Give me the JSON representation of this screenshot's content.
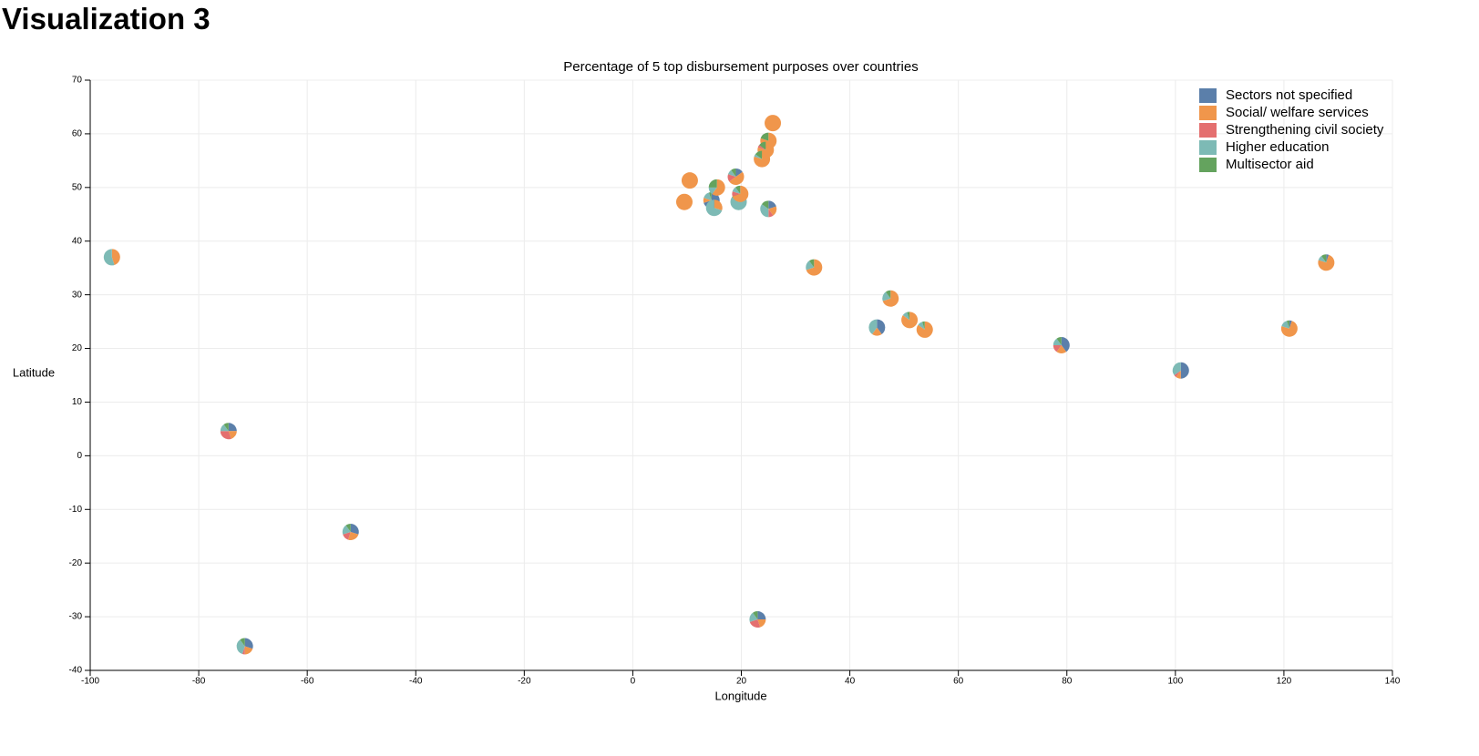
{
  "page_title": "Visualization 3",
  "chart_data": {
    "type": "scatter-pie",
    "title": "Percentage of 5 top disbursement purposes over countries",
    "xlabel": "Longitude",
    "ylabel": "Latitude",
    "xlim": [
      -100,
      140
    ],
    "ylim": [
      -40,
      70
    ],
    "xticks": [
      -100,
      -80,
      -60,
      -40,
      -20,
      0,
      20,
      40,
      60,
      80,
      100,
      120,
      140
    ],
    "yticks": [
      -40,
      -30,
      -20,
      -10,
      0,
      10,
      20,
      30,
      40,
      50,
      60,
      70
    ],
    "grid": true,
    "legend": "top-right",
    "series": [
      {
        "name": "Sectors not specified",
        "color": "#5b7faa"
      },
      {
        "name": "Social/ welfare services",
        "color": "#f0964b"
      },
      {
        "name": "Strengthening civil society",
        "color": "#e46f6f"
      },
      {
        "name": "Higher education",
        "color": "#7dbab5"
      },
      {
        "name": "Multisector aid",
        "color": "#64a35e"
      }
    ],
    "points": [
      {
        "x": -96,
        "y": 37,
        "values": [
          0,
          45,
          0,
          55,
          0
        ]
      },
      {
        "x": -74.5,
        "y": 4.6,
        "values": [
          25,
          20,
          30,
          15,
          10
        ]
      },
      {
        "x": -52,
        "y": -14.2,
        "values": [
          30,
          25,
          15,
          20,
          10
        ]
      },
      {
        "x": -71.5,
        "y": -35.5,
        "values": [
          30,
          20,
          5,
          35,
          10
        ]
      },
      {
        "x": 23,
        "y": -30.5,
        "values": [
          25,
          20,
          25,
          20,
          10
        ]
      },
      {
        "x": 10.5,
        "y": 51.3,
        "values": [
          0,
          100,
          0,
          0,
          0
        ]
      },
      {
        "x": 9.5,
        "y": 47.3,
        "values": [
          0,
          100,
          0,
          0,
          0
        ]
      },
      {
        "x": 14.5,
        "y": 47.6,
        "values": [
          70,
          10,
          0,
          15,
          5
        ]
      },
      {
        "x": 15,
        "y": 46.2,
        "values": [
          0,
          30,
          0,
          70,
          0
        ]
      },
      {
        "x": 15.5,
        "y": 50,
        "values": [
          0,
          60,
          0,
          15,
          25
        ]
      },
      {
        "x": 19,
        "y": 52,
        "values": [
          15,
          50,
          15,
          10,
          10
        ]
      },
      {
        "x": 19.5,
        "y": 47.3,
        "values": [
          0,
          15,
          0,
          70,
          15
        ]
      },
      {
        "x": 19.8,
        "y": 48.8,
        "values": [
          0,
          70,
          10,
          10,
          10
        ]
      },
      {
        "x": 25.8,
        "y": 62,
        "values": [
          0,
          100,
          0,
          0,
          0
        ]
      },
      {
        "x": 25,
        "y": 58.7,
        "values": [
          0,
          80,
          0,
          0,
          20
        ]
      },
      {
        "x": 24.5,
        "y": 57,
        "values": [
          0,
          80,
          5,
          0,
          15
        ]
      },
      {
        "x": 23.8,
        "y": 55.3,
        "values": [
          0,
          80,
          0,
          5,
          15
        ]
      },
      {
        "x": 25,
        "y": 46,
        "values": [
          20,
          20,
          10,
          35,
          15
        ]
      },
      {
        "x": 33.4,
        "y": 35.1,
        "values": [
          0,
          70,
          0,
          20,
          10
        ]
      },
      {
        "x": 47.5,
        "y": 29.3,
        "values": [
          0,
          70,
          0,
          20,
          10
        ]
      },
      {
        "x": 45,
        "y": 23.9,
        "values": [
          40,
          20,
          0,
          40,
          0
        ]
      },
      {
        "x": 51,
        "y": 25.3,
        "values": [
          0,
          85,
          0,
          10,
          5
        ]
      },
      {
        "x": 53.8,
        "y": 23.5,
        "values": [
          0,
          85,
          0,
          10,
          5
        ]
      },
      {
        "x": 79,
        "y": 20.6,
        "values": [
          40,
          20,
          15,
          15,
          10
        ]
      },
      {
        "x": 101,
        "y": 15.9,
        "values": [
          50,
          10,
          5,
          35,
          0
        ]
      },
      {
        "x": 121,
        "y": 23.7,
        "values": [
          5,
          75,
          0,
          15,
          5
        ]
      },
      {
        "x": 127.8,
        "y": 36,
        "values": [
          5,
          75,
          0,
          10,
          10
        ]
      }
    ]
  }
}
